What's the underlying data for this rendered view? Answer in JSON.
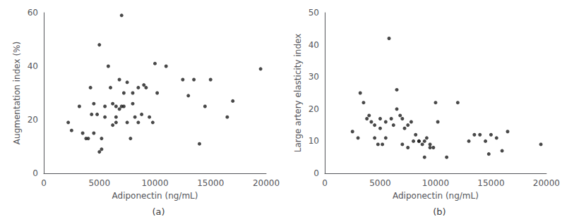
{
  "chart_data": [
    {
      "type": "scatter",
      "title": "(a)",
      "x_label": "Adiponectin (ng/mL)",
      "y_label": "Augmentation index (%)",
      "x": [
        2200,
        2500,
        3200,
        3500,
        3800,
        4000,
        4200,
        4300,
        4500,
        4500,
        4800,
        5000,
        5000,
        5200,
        5200,
        5500,
        5500,
        5800,
        6000,
        6200,
        6200,
        6500,
        6500,
        6500,
        6800,
        6800,
        7000,
        7000,
        7200,
        7200,
        7500,
        7500,
        7800,
        8000,
        8000,
        8200,
        8500,
        8500,
        8800,
        9000,
        9200,
        9500,
        9800,
        10000,
        10200,
        11000,
        12500,
        13000,
        13500,
        14000,
        14500,
        15000,
        16500,
        17000,
        19500
      ],
      "values": [
        19,
        16,
        25,
        15,
        13,
        13,
        32,
        22,
        26,
        15,
        22,
        48,
        8,
        9,
        13,
        25,
        21,
        40,
        32,
        26,
        18,
        19,
        21,
        25,
        35,
        24,
        59,
        25,
        30,
        25,
        34,
        19,
        13,
        30,
        26,
        21,
        32,
        19,
        22,
        33,
        32,
        21,
        19,
        41,
        30,
        40,
        35,
        29,
        35,
        11,
        25,
        35,
        21,
        27,
        39
      ],
      "xlim": [
        0,
        20000
      ],
      "xticks": [
        0,
        5000,
        10000,
        15000,
        20000
      ],
      "ylim": [
        0,
        60
      ],
      "yticks": [
        0,
        20,
        40,
        60
      ],
      "color": "#1a1a1a",
      "grid": false
    },
    {
      "type": "scatter",
      "title": "(b)",
      "x_label": "Adiponectin (ng/mL)",
      "y_label": "Large artery elasticity index",
      "x": [
        2500,
        3000,
        3200,
        3500,
        3800,
        4000,
        4200,
        4500,
        4500,
        4800,
        5000,
        5000,
        5200,
        5500,
        5500,
        5800,
        6000,
        6200,
        6500,
        6500,
        6800,
        7000,
        7000,
        7200,
        7500,
        7500,
        7800,
        8000,
        8200,
        8500,
        8500,
        8800,
        9000,
        9000,
        9200,
        9500,
        9500,
        9800,
        10000,
        10200,
        11000,
        12000,
        13000,
        13500,
        14000,
        14500,
        14800,
        15000,
        15500,
        16000,
        16500,
        19500
      ],
      "values": [
        13,
        11,
        25,
        22,
        17,
        18,
        16,
        11,
        15,
        9,
        14,
        17,
        9,
        11,
        16,
        42,
        17,
        15,
        26,
        20,
        18,
        17,
        9,
        14,
        8,
        15,
        16,
        10,
        12,
        10,
        10,
        9,
        5,
        10,
        11,
        9,
        8,
        8,
        22,
        16,
        5,
        22,
        10,
        12,
        12,
        10,
        6,
        12,
        11,
        7,
        13,
        9
      ],
      "xlim": [
        0,
        20000
      ],
      "xticks": [
        0,
        5000,
        10000,
        15000,
        20000
      ],
      "ylim": [
        0,
        50
      ],
      "yticks": [
        0,
        10,
        20,
        30,
        40,
        50
      ],
      "color": "#1a1a1a",
      "grid": false
    }
  ]
}
